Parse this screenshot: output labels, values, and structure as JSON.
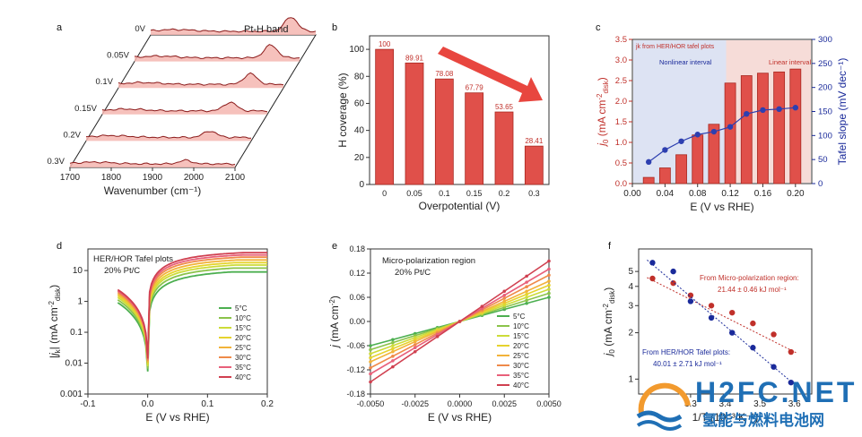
{
  "chart_data": [
    {
      "panel": "a",
      "type": "line",
      "title": "Pt-H band",
      "xlabel": "Wavenumber (cm-1)",
      "xlim": [
        1700,
        2100
      ],
      "xticks": [
        "1700",
        "1800",
        "1900",
        "2000",
        "2100"
      ],
      "series": [
        {
          "name": "0V",
          "peak": 2040,
          "height": 1.0
        },
        {
          "name": "0.05V",
          "peak": 2030,
          "height": 0.9
        },
        {
          "name": "0.1V",
          "peak": 2020,
          "height": 0.75
        },
        {
          "name": "0.15V",
          "peak": 2010,
          "height": 0.6
        },
        {
          "name": "0.2V",
          "peak": 2000,
          "height": 0.45
        },
        {
          "name": "0.3V",
          "peak": 1980,
          "height": 0.25
        }
      ],
      "colors": {
        "line": "#8b1a1a",
        "fill": "#f4b6b0"
      }
    },
    {
      "panel": "b",
      "type": "bar",
      "categories": [
        "0",
        "0.05",
        "0.1",
        "0.15",
        "0.2",
        "0.3"
      ],
      "values": [
        100,
        89.91,
        78.08,
        67.79,
        53.65,
        28.41
      ],
      "value_labels": [
        "100",
        "89.91",
        "78.08",
        "67.79",
        "53.65",
        "28.41"
      ],
      "xlabel": "Overpotential (V)",
      "ylabel": "H coverage (%)",
      "ylim": [
        0,
        110
      ],
      "yticks": [
        "0",
        "20",
        "40",
        "60",
        "80",
        "100"
      ],
      "colors": {
        "bar": "#e0504a",
        "arrow": "#e8463f"
      }
    },
    {
      "panel": "c",
      "type": "bar",
      "categories": [
        0.02,
        0.04,
        0.06,
        0.08,
        0.1,
        0.12,
        0.14,
        0.16,
        0.18,
        0.2
      ],
      "values": [
        0.15,
        0.38,
        0.7,
        1.18,
        1.44,
        2.44,
        2.62,
        2.68,
        2.71,
        2.78
      ],
      "line_series": {
        "x": [
          0.02,
          0.04,
          0.06,
          0.08,
          0.1,
          0.12,
          0.14,
          0.16,
          0.18,
          0.2
        ],
        "values": [
          45,
          70,
          88,
          102,
          108,
          118,
          145,
          153,
          155,
          158
        ]
      },
      "xlabel": "E (V vs RHE)",
      "ylabel": "j0 (mA cm-2disk)",
      "ylabel2": "Tafel slope (mV dec-1)",
      "xlim": [
        0,
        0.22
      ],
      "ylim": [
        0,
        3.5
      ],
      "ylim2": [
        0,
        300
      ],
      "xticks": [
        "0.00",
        "0.04",
        "0.08",
        "0.12",
        "0.16",
        "0.20"
      ],
      "yticks": [
        "0.0",
        "0.5",
        "1.0",
        "1.5",
        "2.0",
        "2.5",
        "3.0",
        "3.5"
      ],
      "yticks2": [
        "0",
        "50",
        "100",
        "150",
        "200",
        "250",
        "300"
      ],
      "annotations": [
        "jk from HER/HOR tafel plots",
        "Nonlinear interval",
        "Linear interval"
      ],
      "colors": {
        "bar": "#e0504a",
        "line": "#2d3fb0",
        "left": "#c0302a",
        "right": "#1a2a9a"
      }
    },
    {
      "panel": "d",
      "type": "line",
      "xlabel": "E (V vs RHE)",
      "ylabel": "|jk| (mA cm-2disk)",
      "xlim": [
        -0.1,
        0.2
      ],
      "yscale": "log",
      "ylim": [
        0.001,
        50
      ],
      "xticks": [
        "-0.1",
        "0.0",
        "0.1",
        "0.2"
      ],
      "yticks": [
        "0.001",
        "0.01",
        "0.1",
        "1",
        "10"
      ],
      "annotations": [
        "HER/HOR Tafel plots",
        "20% Pt/C"
      ],
      "series": [
        {
          "name": "5°C",
          "color": "#4caf50",
          "y_end": 9
        },
        {
          "name": "10°C",
          "color": "#8bc34a",
          "y_end": 12
        },
        {
          "name": "15°C",
          "color": "#cddc39",
          "y_end": 15
        },
        {
          "name": "20°C",
          "color": "#e6d32e",
          "y_end": 18
        },
        {
          "name": "25°C",
          "color": "#f2b33a",
          "y_end": 22
        },
        {
          "name": "30°C",
          "color": "#ef8a4a",
          "y_end": 27
        },
        {
          "name": "35°C",
          "color": "#e8607a",
          "y_end": 32
        },
        {
          "name": "40°C",
          "color": "#d04050",
          "y_end": 38
        }
      ]
    },
    {
      "panel": "e",
      "type": "line",
      "xlabel": "E (V vs RHE)",
      "ylabel": "j (mA cm-2)",
      "xlim": [
        -0.005,
        0.005
      ],
      "ylim": [
        -0.18,
        0.18
      ],
      "xticks": [
        "-0.0050",
        "-0.0025",
        "0.0000",
        "0.0025",
        "0.0050"
      ],
      "yticks": [
        "-0.18",
        "-0.12",
        "-0.06",
        "0.00",
        "0.06",
        "0.12",
        "0.18"
      ],
      "annotations": [
        "Micro-polarization region",
        "20% Pt/C"
      ],
      "series": [
        {
          "name": "5°C",
          "color": "#4caf50",
          "slope": 12
        },
        {
          "name": "10°C",
          "color": "#8bc34a",
          "slope": 14
        },
        {
          "name": "15°C",
          "color": "#cddc39",
          "slope": 16
        },
        {
          "name": "20°C",
          "color": "#e6d32e",
          "slope": 18
        },
        {
          "name": "25°C",
          "color": "#f2b33a",
          "slope": 20
        },
        {
          "name": "30°C",
          "color": "#ef8a4a",
          "slope": 23
        },
        {
          "name": "35°C",
          "color": "#e8607a",
          "slope": 26
        },
        {
          "name": "40°C",
          "color": "#d04050",
          "slope": 30
        }
      ]
    },
    {
      "panel": "f",
      "type": "scatter",
      "xlabel": "1/T (10-3 K-1)",
      "ylabel": "j0 (mA cm-2disk)",
      "xlim": [
        3.15,
        3.65
      ],
      "yscale": "log",
      "ylim": [
        1,
        7
      ],
      "xticks": [
        "3.3",
        "3.4",
        "3.5",
        "3.6"
      ],
      "yticks": [
        "1",
        "2",
        "3",
        "4",
        "5"
      ],
      "series": [
        {
          "name": "From Micro-polarization region: 21.44 ± 0.46 kJ mol-1",
          "color": "#c0302a",
          "x": [
            3.19,
            3.25,
            3.3,
            3.36,
            3.42,
            3.48,
            3.54,
            3.59
          ],
          "y": [
            4.5,
            4.2,
            3.5,
            3.0,
            2.7,
            2.3,
            1.95,
            1.5
          ]
        },
        {
          "name": "From HER/HOR Tafel plots: 40.01 ± 2.71 kJ mol-1",
          "color": "#1a2a9a",
          "x": [
            3.19,
            3.25,
            3.3,
            3.36,
            3.42,
            3.48,
            3.54,
            3.59
          ],
          "y": [
            5.7,
            5.0,
            3.2,
            2.5,
            2.0,
            1.6,
            1.2,
            0.95
          ]
        }
      ]
    }
  ],
  "watermark": {
    "logo": "H2FC.NET",
    "subtitle": "氢能与燃料电池网"
  }
}
